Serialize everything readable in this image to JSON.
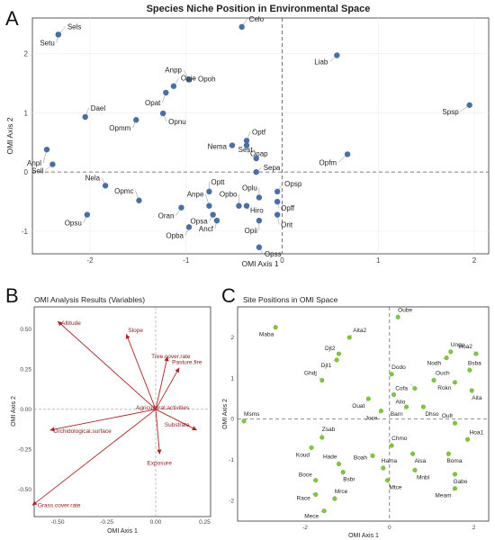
{
  "panel_letters": {
    "a": "A",
    "b": "B",
    "c": "C"
  },
  "chart_data": [
    {
      "type": "scatter",
      "title": "Species Niche Position in Environmental Space",
      "xlabel": "OMI Axis 1",
      "ylabel": "OMI Axis 2",
      "xlim": [
        -2.6,
        2.15
      ],
      "ylim": [
        -1.38,
        2.6
      ],
      "xticks": [
        -2,
        -1,
        0,
        1,
        2
      ],
      "yticks": [
        -1,
        0,
        1,
        2
      ],
      "grid": true,
      "colors": {
        "point": "#4a6fa5",
        "zero_line": "#555555"
      },
      "points": [
        {
          "label": "Sels",
          "x": -2.33,
          "y": 2.32
        },
        {
          "label": "Setu",
          "x": -2.33,
          "y": 2.32
        },
        {
          "label": "Celo",
          "x": -0.42,
          "y": 2.45
        },
        {
          "label": "Liab",
          "x": 0.57,
          "y": 1.97
        },
        {
          "label": "Anpp",
          "x": -0.97,
          "y": 1.56
        },
        {
          "label": "Opoh",
          "x": -0.97,
          "y": 1.56
        },
        {
          "label": "Opje",
          "x": -1.13,
          "y": 1.45
        },
        {
          "label": "Opat",
          "x": -1.21,
          "y": 1.34
        },
        {
          "label": "Dael",
          "x": -2.05,
          "y": 0.93
        },
        {
          "label": "Opnu",
          "x": -1.24,
          "y": 0.99
        },
        {
          "label": "Opmm",
          "x": -1.52,
          "y": 0.88
        },
        {
          "label": "Spsp",
          "x": 1.95,
          "y": 1.13
        },
        {
          "label": "Optf",
          "x": -0.37,
          "y": 0.53
        },
        {
          "label": "Nema",
          "x": -0.52,
          "y": 0.45
        },
        {
          "label": "Opap",
          "x": -0.37,
          "y": 0.45
        },
        {
          "label": "Opfm",
          "x": 0.68,
          "y": 0.3
        },
        {
          "label": "Anpl",
          "x": -2.45,
          "y": 0.38
        },
        {
          "label": "Sell",
          "x": -2.39,
          "y": 0.13
        },
        {
          "label": "Sest",
          "x": -0.27,
          "y": 0.23
        },
        {
          "label": "Sepa",
          "x": -0.27,
          "y": 0.0
        },
        {
          "label": "Nela",
          "x": -1.84,
          "y": -0.23
        },
        {
          "label": "Opmc",
          "x": -1.49,
          "y": -0.48
        },
        {
          "label": "Optt",
          "x": -0.76,
          "y": -0.33
        },
        {
          "label": "Opsp",
          "x": -0.05,
          "y": -0.33
        },
        {
          "label": "Oplu",
          "x": -0.24,
          "y": -0.43
        },
        {
          "label": "Anpe",
          "x": -0.76,
          "y": -0.57
        },
        {
          "label": "Opbo",
          "x": -0.45,
          "y": -0.57
        },
        {
          "label": "Oran",
          "x": -1.05,
          "y": -0.6
        },
        {
          "label": "Opsa",
          "x": -0.72,
          "y": -0.72
        },
        {
          "label": "Opff",
          "x": -0.05,
          "y": -0.5
        },
        {
          "label": "Hiro",
          "x": -0.37,
          "y": -0.57
        },
        {
          "label": "Opsu",
          "x": -2.03,
          "y": -0.72
        },
        {
          "label": "Orit",
          "x": -0.05,
          "y": -0.72
        },
        {
          "label": "Ancf",
          "x": -0.68,
          "y": -0.82
        },
        {
          "label": "Opii",
          "x": -0.24,
          "y": -0.82
        },
        {
          "label": "Opba",
          "x": -0.97,
          "y": -0.93
        },
        {
          "label": "Opss",
          "x": -0.24,
          "y": -1.27
        }
      ]
    },
    {
      "type": "biplot",
      "title": "OMI Analysis Results (Variables)",
      "xlabel": "OMI Axis 1",
      "ylabel": "OMI Axis 2",
      "xlim": [
        -0.62,
        0.28
      ],
      "ylim": [
        -0.67,
        0.64
      ],
      "xticks": [
        -0.5,
        -0.25,
        0.0,
        0.25
      ],
      "xtick_labels": [
        "-0.50",
        "-0.25",
        "0.00",
        "0.25"
      ],
      "yticks": [
        -0.5,
        -0.25,
        0.0,
        0.25,
        0.5
      ],
      "ytick_labels": [
        "-0.50",
        "-0.25",
        "0.00",
        "0.25",
        "0.50"
      ],
      "colors": {
        "arrow": "#b22222",
        "label": "#8b1a1a"
      },
      "vectors": [
        {
          "label": "Altitude",
          "x": -0.5,
          "y": 0.55
        },
        {
          "label": "Slope",
          "x": -0.15,
          "y": 0.47
        },
        {
          "label": "Tree.cover.rate",
          "x": 0.06,
          "y": 0.33
        },
        {
          "label": "Pasture.fire",
          "x": 0.12,
          "y": 0.26
        },
        {
          "label": "Agricultural.activities",
          "x": 0.0,
          "y": 0.0
        },
        {
          "label": "Substrate",
          "x": 0.21,
          "y": -0.13
        },
        {
          "label": "Orchidological.surface",
          "x": -0.54,
          "y": -0.13
        },
        {
          "label": "Exposure",
          "x": 0.02,
          "y": -0.28
        },
        {
          "label": "Grass.cover.rate",
          "x": -0.63,
          "y": -0.6
        }
      ]
    },
    {
      "type": "scatter",
      "title": "Site Positions in OMI Space",
      "xlabel": "OMI Axis 1",
      "ylabel": "OMI Axis 2",
      "xlim": [
        -3.6,
        2.35
      ],
      "ylim": [
        -2.5,
        2.75
      ],
      "xticks": [
        -2,
        0,
        2
      ],
      "yticks": [
        -2,
        -1,
        0,
        1,
        2
      ],
      "colors": {
        "point": "#7ec83a",
        "zero_line": "#555555"
      },
      "points": [
        {
          "label": "Oube",
          "x": 0.2,
          "y": 2.5
        },
        {
          "label": "Maba",
          "x": -2.7,
          "y": 2.25
        },
        {
          "label": "Aita2",
          "x": -0.95,
          "y": 2.0
        },
        {
          "label": "Djt2",
          "x": -1.2,
          "y": 1.6
        },
        {
          "label": "Djt1",
          "x": -1.25,
          "y": 1.45
        },
        {
          "label": "Ungu",
          "x": 1.45,
          "y": 1.65
        },
        {
          "label": "Hoa2",
          "x": 2.05,
          "y": 1.6
        },
        {
          "label": "Nodh",
          "x": 1.35,
          "y": 1.5
        },
        {
          "label": "Bsba",
          "x": 1.9,
          "y": 1.2
        },
        {
          "label": "Ghdj",
          "x": -1.6,
          "y": 0.95
        },
        {
          "label": "Dodo",
          "x": 0.05,
          "y": 1.1
        },
        {
          "label": "Ouch",
          "x": 1.05,
          "y": 0.95
        },
        {
          "label": "Cofa",
          "x": 0.6,
          "y": 0.75
        },
        {
          "label": "Rokn",
          "x": 1.55,
          "y": 0.9
        },
        {
          "label": "Aita",
          "x": 1.95,
          "y": 0.7
        },
        {
          "label": "Ouat",
          "x": -0.5,
          "y": 0.5
        },
        {
          "label": "Ailo",
          "x": 0.1,
          "y": 0.6
        },
        {
          "label": "Barn",
          "x": 0.4,
          "y": 0.3
        },
        {
          "label": "Dhso",
          "x": 0.8,
          "y": 0.3
        },
        {
          "label": "Joce",
          "x": -0.2,
          "y": 0.2
        },
        {
          "label": "Msms",
          "x": -3.45,
          "y": -0.05
        },
        {
          "label": "Oufr",
          "x": 1.55,
          "y": -0.1
        },
        {
          "label": "Zsab",
          "x": -1.6,
          "y": -0.45
        },
        {
          "label": "Koud",
          "x": -1.85,
          "y": -0.7
        },
        {
          "label": "Hoa1",
          "x": 1.85,
          "y": -0.5
        },
        {
          "label": "Chmo",
          "x": 0.05,
          "y": -0.65
        },
        {
          "label": "Aisa",
          "x": 0.55,
          "y": -0.85
        },
        {
          "label": "Boah",
          "x": -0.4,
          "y": -0.9
        },
        {
          "label": "Boma",
          "x": 1.4,
          "y": -0.85
        },
        {
          "label": "Hade",
          "x": -1.2,
          "y": -1.1
        },
        {
          "label": "Hama",
          "x": -0.15,
          "y": -1.2
        },
        {
          "label": "Mnbl",
          "x": 0.6,
          "y": -1.25
        },
        {
          "label": "Bsbr",
          "x": -1.1,
          "y": -1.3
        },
        {
          "label": "Gabo",
          "x": 1.55,
          "y": -1.35
        },
        {
          "label": "Boce",
          "x": -1.75,
          "y": -1.5
        },
        {
          "label": "Mtce",
          "x": -0.05,
          "y": -1.5
        },
        {
          "label": "Meam",
          "x": 1.55,
          "y": -1.7
        },
        {
          "label": "Race",
          "x": -1.75,
          "y": -1.85
        },
        {
          "label": "Mrce",
          "x": -1.3,
          "y": -1.95
        },
        {
          "label": "Mece",
          "x": -1.55,
          "y": -2.25
        }
      ]
    }
  ]
}
